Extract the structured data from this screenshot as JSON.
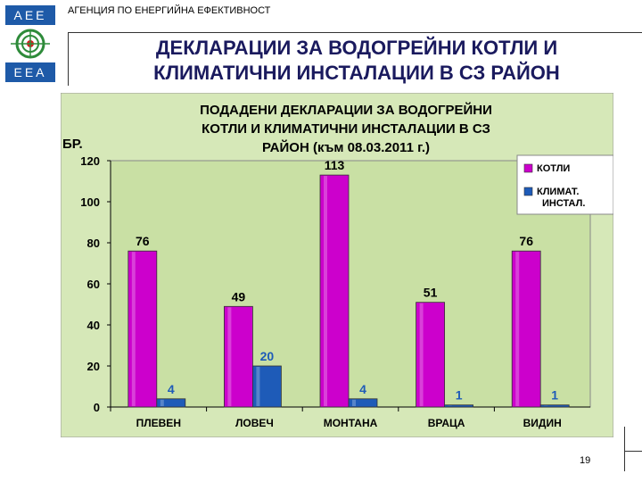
{
  "header": {
    "logo_top": "AEE",
    "logo_bottom": "EEA",
    "agency": "АГЕНЦИЯ ПО ЕНЕРГИЙНА ЕФЕКТИВНОСТ",
    "title_line1": "ДЕКЛАРАЦИИ ЗА ВОДОГРЕЙНИ КОТЛИ И",
    "title_line2": "КЛИМАТИЧНИ ИНСТАЛАЦИИ В СЗ РАЙОН"
  },
  "footer": {
    "slide_number": "19"
  },
  "chart_data": {
    "type": "bar",
    "title_lines": [
      "ПОДАДЕНИ ДЕКЛАРАЦИИ ЗА ВОДОГРЕЙНИ",
      "КОТЛИ И КЛИМАТИЧНИ ИНСТАЛАЦИИ  В СЗ",
      "РАЙОН (към 08.03.2011 г.)"
    ],
    "ylabel": "БР.",
    "xlabel": "",
    "ylim": [
      0,
      120
    ],
    "yticks": [
      0,
      20,
      40,
      60,
      80,
      100,
      120
    ],
    "categories": [
      "ПЛЕВЕН",
      "ЛОВЕЧ",
      "МОНТАНА",
      "ВРАЦА",
      "ВИДИН"
    ],
    "series": [
      {
        "name": "КОТЛИ",
        "values": [
          76,
          49,
          113,
          51,
          76
        ],
        "color": "#cc00cc"
      },
      {
        "name": "КЛИМАТ. ИНСТАЛ.",
        "values": [
          4,
          20,
          4,
          1,
          1
        ],
        "color": "#1e5bb8"
      }
    ],
    "legend_position": "top-right",
    "grid": false,
    "background": "#d6e8b8",
    "plot_background": "#c9e0a4"
  }
}
